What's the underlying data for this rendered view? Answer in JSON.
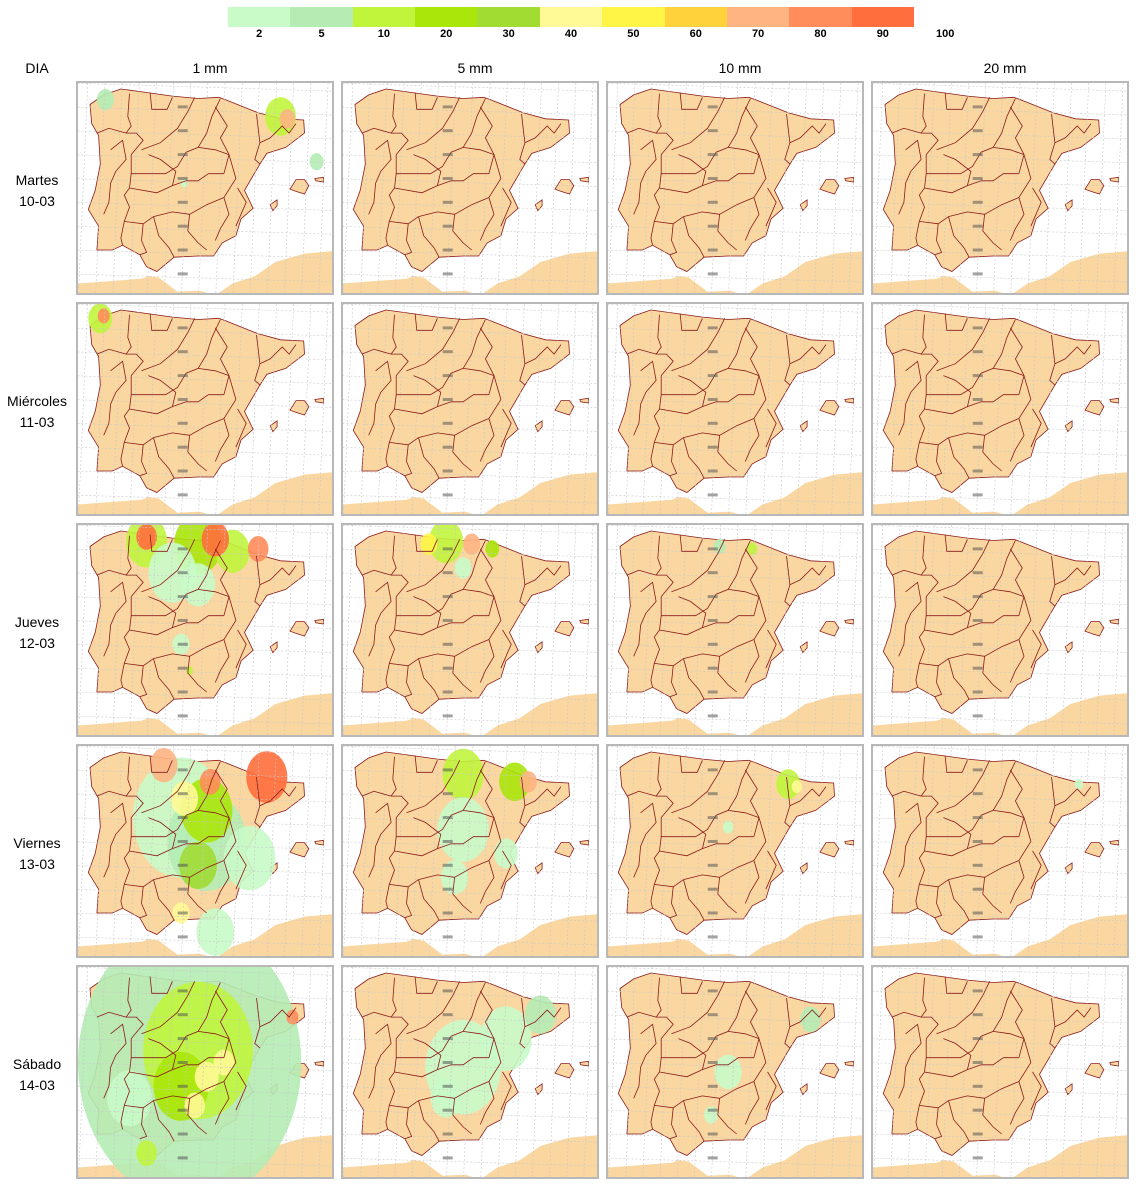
{
  "legend": {
    "colors": [
      "#c8fbc8",
      "#b4ecb4",
      "#c0f53c",
      "#aae60a",
      "#a0dc32",
      "#fffa96",
      "#fff546",
      "#ffd23c",
      "#ffb482",
      "#ff8c5a",
      "#ff6e3c"
    ],
    "ticks": [
      "2",
      "5",
      "10",
      "20",
      "30",
      "40",
      "50",
      "60",
      "70",
      "80",
      "90",
      "100"
    ]
  },
  "header": {
    "row_label": "DIA",
    "thresholds": [
      "1 mm",
      "5 mm",
      "10 mm",
      "20 mm"
    ]
  },
  "days": [
    {
      "name": "Martes",
      "date": "10-03"
    },
    {
      "name": "Miércoles",
      "date": "11-03"
    },
    {
      "name": "Jueves",
      "date": "12-03"
    },
    {
      "name": "Viernes",
      "date": "13-03"
    },
    {
      "name": "Sábado",
      "date": "14-03"
    }
  ],
  "colors": {
    "land": "#fad7a0",
    "sea": "#ffffff",
    "borders": "#8b1a1a",
    "grid": "#c8c8c8",
    "panel_border": "#b8b8b8"
  },
  "precip_blobs": [
    [
      [
        {
          "lon": -8.4,
          "lat": 43.3,
          "r": 0.5,
          "level": 1
        },
        {
          "lon": 1.8,
          "lat": 42.6,
          "r": 0.9,
          "level": 2
        },
        {
          "lon": 2.2,
          "lat": 42.5,
          "r": 0.45,
          "level": 8
        },
        {
          "lon": 3.9,
          "lat": 40.7,
          "r": 0.4,
          "level": 1
        },
        {
          "lon": -3.8,
          "lat": 39.8,
          "r": 0.2,
          "level": 0
        }
      ],
      [],
      [],
      []
    ],
    [
      [
        {
          "lon": -8.7,
          "lat": 43.4,
          "r": 0.7,
          "level": 2
        },
        {
          "lon": -8.5,
          "lat": 43.5,
          "r": 0.35,
          "level": 9
        }
      ],
      [],
      [],
      []
    ],
    [
      [
        {
          "lon": -6.0,
          "lat": 43.3,
          "r": 1.2,
          "level": 2
        },
        {
          "lon": -3.0,
          "lat": 43.2,
          "r": 1.4,
          "level": 3
        },
        {
          "lon": -1.0,
          "lat": 42.9,
          "r": 1.0,
          "level": 2
        },
        {
          "lon": -6.0,
          "lat": 43.5,
          "r": 0.6,
          "level": 10
        },
        {
          "lon": -2.0,
          "lat": 43.4,
          "r": 0.8,
          "level": 10
        },
        {
          "lon": 0.5,
          "lat": 43.0,
          "r": 0.6,
          "level": 9
        },
        {
          "lon": -4.5,
          "lat": 42.0,
          "r": 1.4,
          "level": 0
        },
        {
          "lon": -3.0,
          "lat": 41.5,
          "r": 1.0,
          "level": 0
        },
        {
          "lon": -4.0,
          "lat": 39.0,
          "r": 0.5,
          "level": 0
        },
        {
          "lon": -3.5,
          "lat": 37.9,
          "r": 0.2,
          "level": 2
        }
      ],
      [
        {
          "lon": -4.0,
          "lat": 43.3,
          "r": 1.0,
          "level": 2
        },
        {
          "lon": -2.5,
          "lat": 43.2,
          "r": 0.5,
          "level": 8
        },
        {
          "lon": -5.0,
          "lat": 43.2,
          "r": 0.5,
          "level": 6
        },
        {
          "lon": -3.0,
          "lat": 42.2,
          "r": 0.5,
          "level": 0
        },
        {
          "lon": -1.3,
          "lat": 43.0,
          "r": 0.4,
          "level": 3
        }
      ],
      [
        {
          "lon": -3.5,
          "lat": 43.1,
          "r": 0.35,
          "level": 1
        },
        {
          "lon": -1.6,
          "lat": 43.0,
          "r": 0.3,
          "level": 2
        }
      ],
      []
    ],
    [
      [
        {
          "lon": -4.0,
          "lat": 41.0,
          "r": 2.8,
          "level": 0
        },
        {
          "lon": -2.5,
          "lat": 40.0,
          "r": 2.3,
          "level": 1
        },
        {
          "lon": -2.5,
          "lat": 41.3,
          "r": 1.5,
          "level": 3
        },
        {
          "lon": -3.0,
          "lat": 39.0,
          "r": 1.1,
          "level": 4
        },
        {
          "lon": -3.8,
          "lat": 41.8,
          "r": 0.8,
          "level": 5
        },
        {
          "lon": -5.0,
          "lat": 43.2,
          "r": 0.8,
          "level": 8
        },
        {
          "lon": 1.0,
          "lat": 42.7,
          "r": 1.2,
          "level": 10
        },
        {
          "lon": -2.3,
          "lat": 42.5,
          "r": 0.6,
          "level": 9
        },
        {
          "lon": -4.0,
          "lat": 37.0,
          "r": 0.5,
          "level": 5
        },
        {
          "lon": 0.0,
          "lat": 39.3,
          "r": 1.5,
          "level": 0
        },
        {
          "lon": -2.0,
          "lat": 36.2,
          "r": 1.1,
          "level": 0
        }
      ],
      [
        {
          "lon": -3.0,
          "lat": 42.8,
          "r": 1.2,
          "level": 2
        },
        {
          "lon": 0.0,
          "lat": 42.5,
          "r": 0.9,
          "level": 3
        },
        {
          "lon": 0.8,
          "lat": 42.5,
          "r": 0.5,
          "level": 8
        },
        {
          "lon": -3.0,
          "lat": 40.5,
          "r": 1.5,
          "level": 0
        },
        {
          "lon": -3.5,
          "lat": 38.5,
          "r": 0.8,
          "level": 0
        },
        {
          "lon": -0.5,
          "lat": 39.5,
          "r": 0.7,
          "level": 0
        }
      ],
      [
        {
          "lon": 0.5,
          "lat": 42.4,
          "r": 0.7,
          "level": 2
        },
        {
          "lon": 1.0,
          "lat": 42.3,
          "r": 0.3,
          "level": 5
        },
        {
          "lon": -3.0,
          "lat": 40.6,
          "r": 0.3,
          "level": 0
        }
      ],
      [
        {
          "lon": 2.0,
          "lat": 42.4,
          "r": 0.25,
          "level": 0
        }
      ]
    ],
    [
      [
        {
          "lon": -3.5,
          "lat": 40.0,
          "r": 6.5,
          "level": 1
        },
        {
          "lon": -3.0,
          "lat": 40.5,
          "r": 3.2,
          "level": 2
        },
        {
          "lon": -4.0,
          "lat": 39.0,
          "r": 1.6,
          "level": 3
        },
        {
          "lon": -2.5,
          "lat": 39.4,
          "r": 0.7,
          "level": 5
        },
        {
          "lon": -1.5,
          "lat": 40.0,
          "r": 0.6,
          "level": 5
        },
        {
          "lon": -3.2,
          "lat": 38.2,
          "r": 0.6,
          "level": 5
        },
        {
          "lon": 2.5,
          "lat": 41.9,
          "r": 0.35,
          "level": 9
        },
        {
          "lon": -7.0,
          "lat": 38.5,
          "r": 1.3,
          "level": 0
        },
        {
          "lon": -6.0,
          "lat": 36.2,
          "r": 0.6,
          "level": 2
        }
      ],
      [
        {
          "lon": -3.0,
          "lat": 39.8,
          "r": 2.2,
          "level": 0
        },
        {
          "lon": -0.5,
          "lat": 41.0,
          "r": 1.5,
          "level": 0
        },
        {
          "lon": 1.5,
          "lat": 42.0,
          "r": 0.9,
          "level": 1
        },
        {
          "lon": -4.0,
          "lat": 38.5,
          "r": 0.9,
          "level": 0
        }
      ],
      [
        {
          "lon": -3.0,
          "lat": 39.6,
          "r": 0.8,
          "level": 0
        },
        {
          "lon": 1.8,
          "lat": 41.8,
          "r": 0.6,
          "level": 1
        },
        {
          "lon": -4.0,
          "lat": 37.8,
          "r": 0.4,
          "level": 0
        }
      ],
      []
    ]
  ]
}
